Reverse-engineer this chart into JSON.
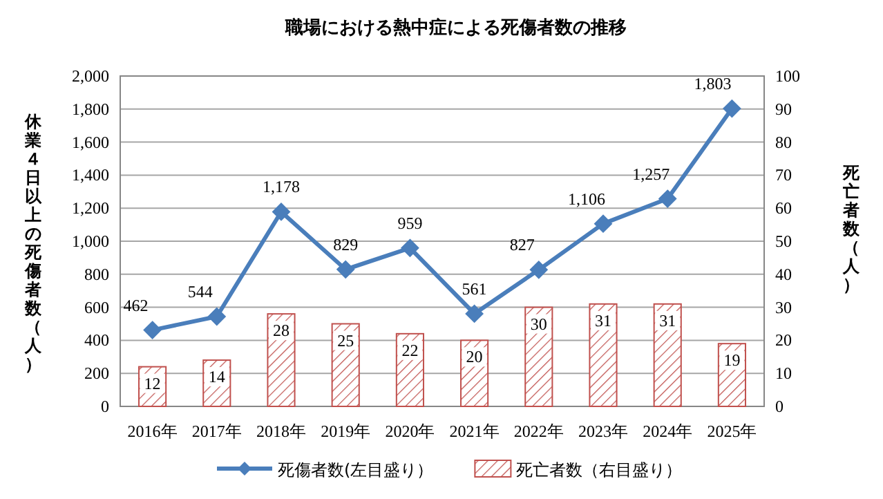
{
  "chart_data": {
    "type": "bar",
    "title": "職場における熱中症による死傷者数の推移",
    "ylabel": "休業４日以上の死傷者数（人）",
    "y2label": "死亡者数（人）",
    "categories": [
      "2016年",
      "2017年",
      "2018年",
      "2019年",
      "2020年",
      "2021年",
      "2022年",
      "2023年",
      "2024年",
      "2025年"
    ],
    "series": [
      {
        "name": "死傷者数(左目盛り）",
        "type": "line",
        "color": "#4a7ebb",
        "values": [
          462,
          544,
          1178,
          829,
          959,
          561,
          827,
          1106,
          1257,
          1803
        ],
        "value_labels": [
          "462",
          "544",
          "1,178",
          "829",
          "959",
          "561",
          "827",
          "1,106",
          "1,257",
          "1,803"
        ]
      },
      {
        "name": "死亡者数（右目盛り）",
        "axis": "y2",
        "color": "#c0504d",
        "values": [
          12,
          14,
          28,
          25,
          22,
          20,
          30,
          31,
          31,
          19
        ]
      }
    ],
    "ylim": [
      0,
      2000
    ],
    "yticks": [
      0,
      200,
      400,
      600,
      800,
      {
        "value": 1000,
        "label": "1,000"
      },
      {
        "value": 1200,
        "label": "1,200"
      },
      {
        "value": 1400,
        "label": "1,400"
      },
      {
        "value": 1600,
        "label": "1,600"
      },
      {
        "value": 1800,
        "label": "1,800"
      },
      {
        "value": 2000,
        "label": "2,000"
      }
    ],
    "y2lim": [
      0,
      100
    ],
    "y2ticks": [
      0,
      10,
      20,
      30,
      40,
      50,
      60,
      70,
      80,
      90,
      100
    ],
    "grid": "y",
    "legend": "bottom",
    "marker": "diamond",
    "data_labels": true
  }
}
